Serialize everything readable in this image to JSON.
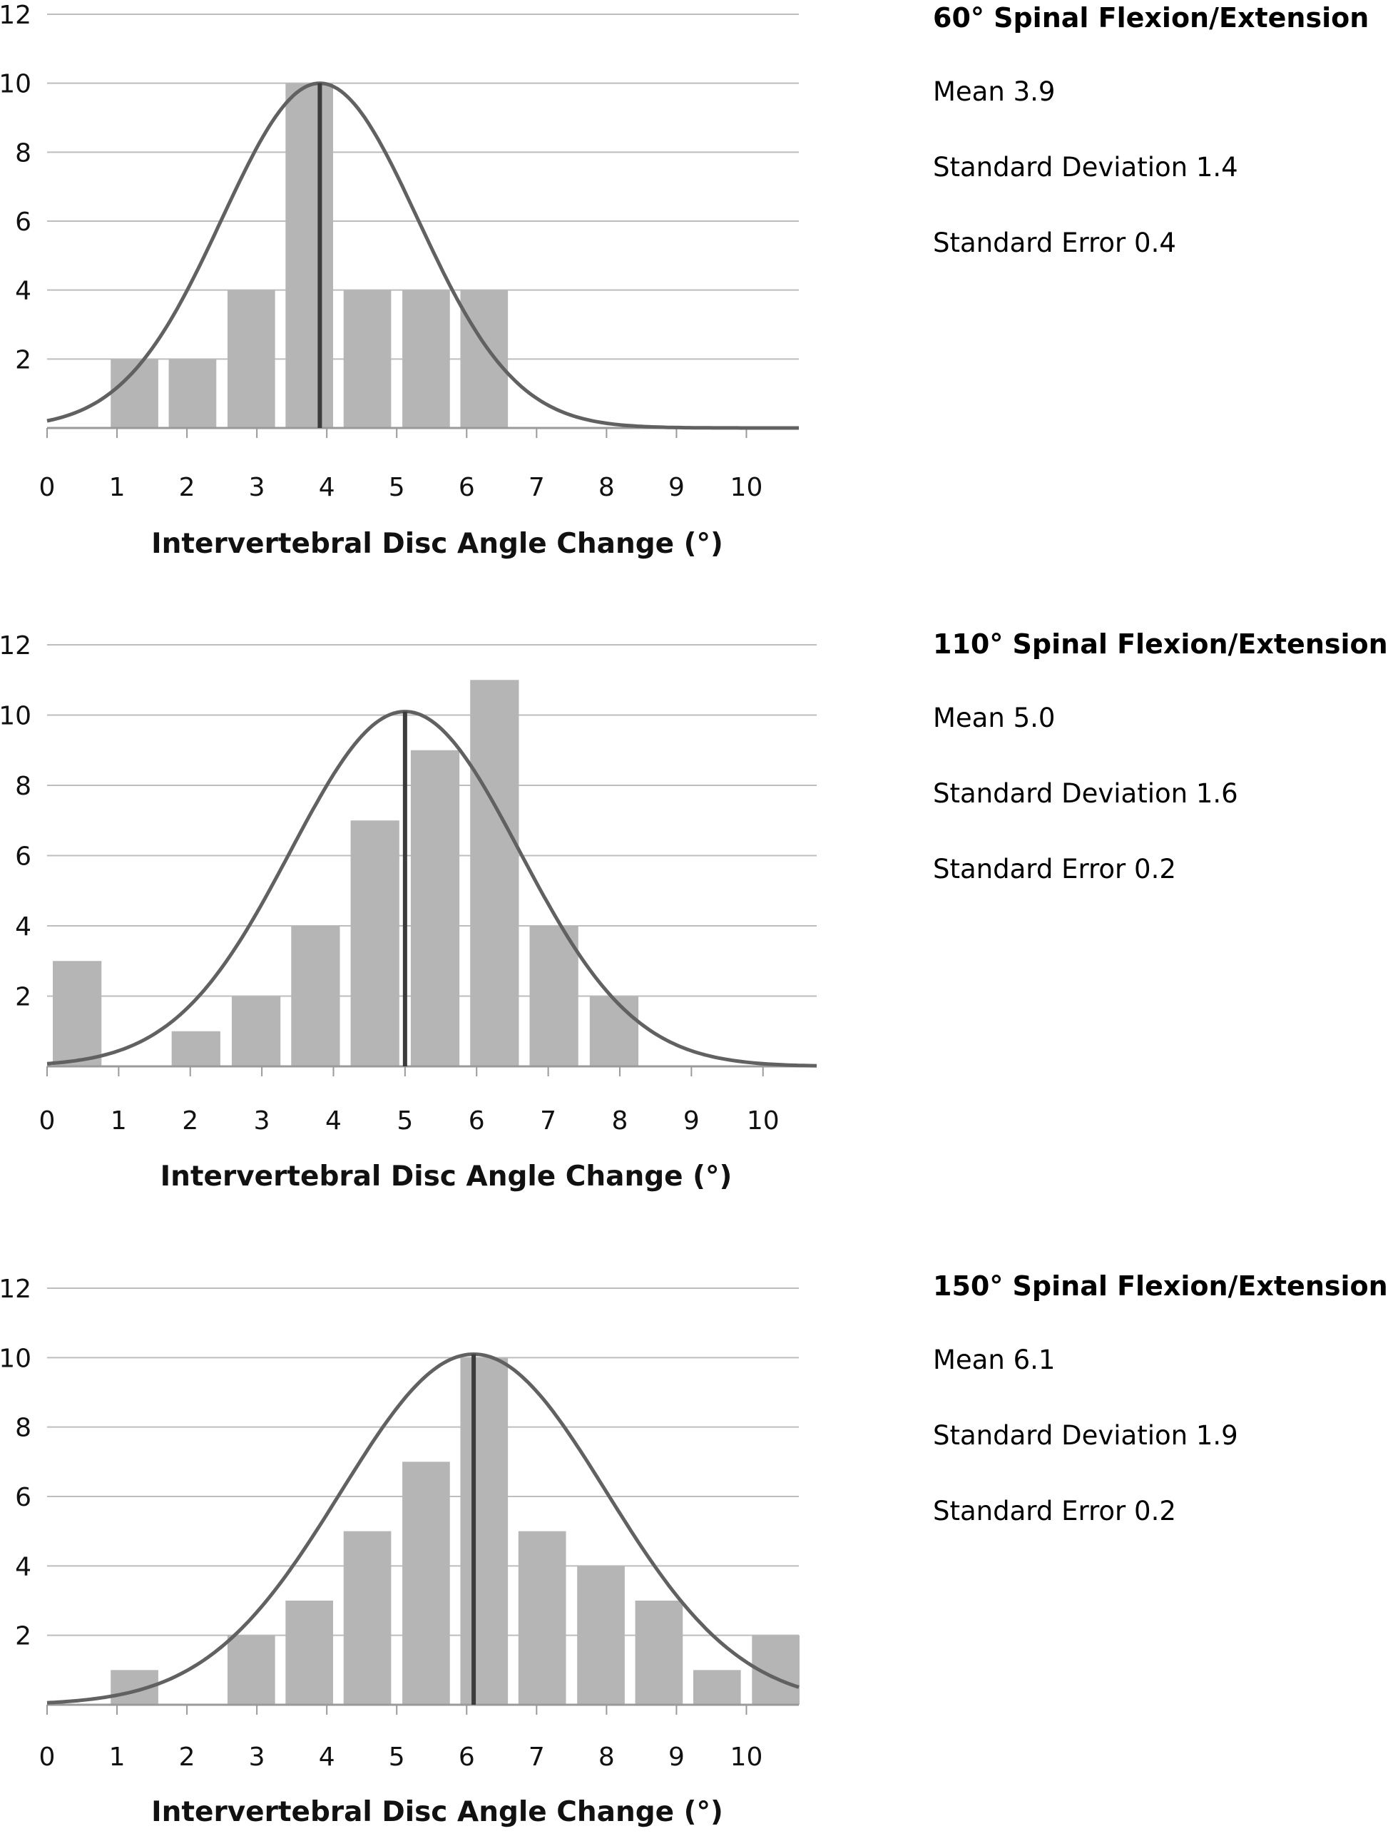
{
  "chart_data": [
    {
      "type": "bar",
      "title": "60° Spinal Flexion/Extension",
      "stats": [
        "Mean 3.9",
        "Standard Deviation 1.4",
        "Standard Error 0.4"
      ],
      "xlabel": "Intervertebral Disc Angle Change (°)",
      "ylabel": "",
      "x_ticks": [
        0,
        1,
        2,
        3,
        4,
        5,
        6,
        7,
        8,
        9,
        10
      ],
      "y_ticks": [
        2,
        4,
        6,
        8,
        10,
        12
      ],
      "xlim": [
        0,
        10.75
      ],
      "ylim": [
        0,
        12
      ],
      "bars": [
        {
          "x": 1.25,
          "value": 2
        },
        {
          "x": 2.08,
          "value": 2
        },
        {
          "x": 2.92,
          "value": 4
        },
        {
          "x": 3.75,
          "value": 10
        },
        {
          "x": 4.58,
          "value": 4
        },
        {
          "x": 5.42,
          "value": 4
        },
        {
          "x": 6.25,
          "value": 4
        }
      ],
      "bar_width": 0.68,
      "mean": 3.9,
      "sd": 1.4,
      "curve_peak": 10,
      "grid": true,
      "colors": {
        "bar": "#b5b5b5",
        "curve": "#616161",
        "mean_line": "#3c3c3c",
        "grid": "#bdbdbd"
      }
    },
    {
      "type": "bar",
      "title": "110° Spinal Flexion/Extension",
      "stats": [
        "Mean 5.0",
        "Standard Deviation 1.6",
        "Standard Error 0.2"
      ],
      "xlabel": "Intervertebral Disc Angle Change (°)",
      "ylabel": "",
      "x_ticks": [
        0,
        1,
        2,
        3,
        4,
        5,
        6,
        7,
        8,
        9,
        10
      ],
      "y_ticks": [
        2,
        4,
        6,
        8,
        10,
        12
      ],
      "xlim": [
        0,
        10.75
      ],
      "ylim": [
        0,
        12
      ],
      "bars": [
        {
          "x": 0.42,
          "value": 3
        },
        {
          "x": 2.08,
          "value": 1
        },
        {
          "x": 2.92,
          "value": 2
        },
        {
          "x": 3.75,
          "value": 4
        },
        {
          "x": 4.58,
          "value": 7
        },
        {
          "x": 5.42,
          "value": 9
        },
        {
          "x": 6.25,
          "value": 11
        },
        {
          "x": 7.08,
          "value": 4
        },
        {
          "x": 7.92,
          "value": 2
        }
      ],
      "bar_width": 0.68,
      "mean": 5.0,
      "sd": 1.6,
      "curve_peak": 10.1,
      "grid": true,
      "colors": {
        "bar": "#b5b5b5",
        "curve": "#616161",
        "mean_line": "#3c3c3c",
        "grid": "#bdbdbd"
      }
    },
    {
      "type": "bar",
      "title": "150° Spinal Flexion/Extension",
      "stats": [
        "Mean 6.1",
        "Standard Deviation 1.9",
        "Standard Error 0.2"
      ],
      "xlabel": "Intervertebral Disc Angle Change (°)",
      "ylabel": "",
      "x_ticks": [
        0,
        1,
        2,
        3,
        4,
        5,
        6,
        7,
        8,
        9,
        10
      ],
      "y_ticks": [
        2,
        4,
        6,
        8,
        10,
        12
      ],
      "xlim": [
        0,
        10.75
      ],
      "ylim": [
        0,
        12
      ],
      "bars": [
        {
          "x": 1.25,
          "value": 1
        },
        {
          "x": 2.92,
          "value": 2
        },
        {
          "x": 3.75,
          "value": 3
        },
        {
          "x": 4.58,
          "value": 5
        },
        {
          "x": 5.42,
          "value": 7
        },
        {
          "x": 6.25,
          "value": 10
        },
        {
          "x": 7.08,
          "value": 5
        },
        {
          "x": 7.92,
          "value": 4
        },
        {
          "x": 8.75,
          "value": 3
        },
        {
          "x": 9.58,
          "value": 1
        },
        {
          "x": 10.42,
          "value": 2
        }
      ],
      "bar_width": 0.68,
      "mean": 6.1,
      "sd": 1.9,
      "curve_peak": 10.1,
      "grid": true,
      "colors": {
        "bar": "#b5b5b5",
        "curve": "#616161",
        "mean_line": "#3c3c3c",
        "grid": "#bdbdbd"
      }
    }
  ]
}
